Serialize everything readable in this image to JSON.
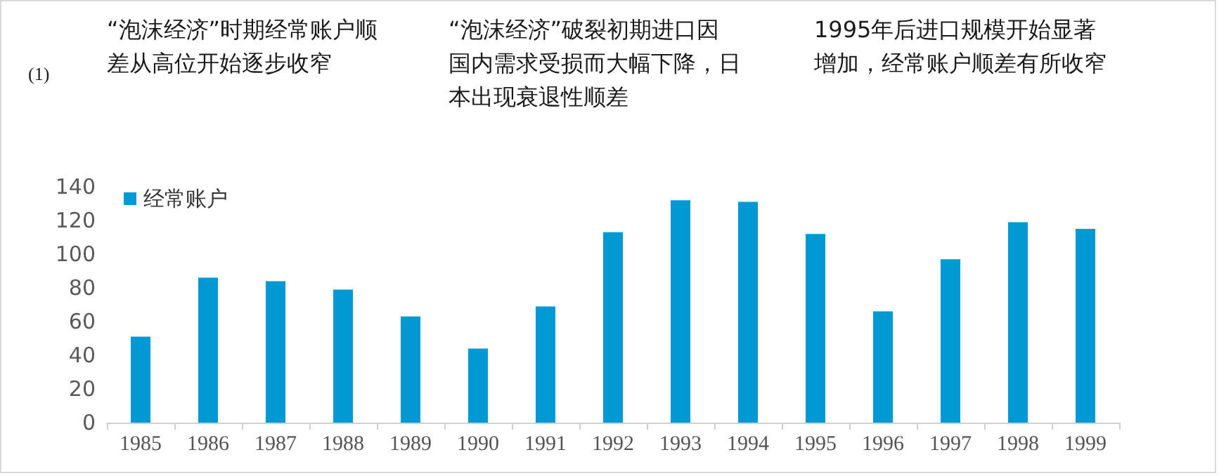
{
  "chart_data": {
    "type": "bar",
    "title": "(1)",
    "categories": [
      "1985",
      "1986",
      "1987",
      "1988",
      "1989",
      "1990",
      "1991",
      "1992",
      "1993",
      "1994",
      "1995",
      "1996",
      "1997",
      "1998",
      "1999"
    ],
    "series": [
      {
        "name": "经常账户",
        "color": "#0099d4",
        "values": [
          51,
          86,
          84,
          79,
          63,
          44,
          69,
          113,
          132,
          131,
          112,
          66,
          97,
          119,
          115
        ]
      }
    ],
    "ylim": [
      0,
      140
    ],
    "yticks": [
      0,
      20,
      40,
      60,
      80,
      100,
      120,
      140
    ],
    "grid": false,
    "legend": "top left",
    "annotations": [
      "“泡沫经济”时期经常账户顺差从高位开始逐步收窄",
      "“泡沫经济”破裂初期进口因国内需求受损而大幅下降，日本出现衰退性顺差",
      "1995年后进口规模开始显著增加，经常账户顺差有所收窄"
    ]
  }
}
